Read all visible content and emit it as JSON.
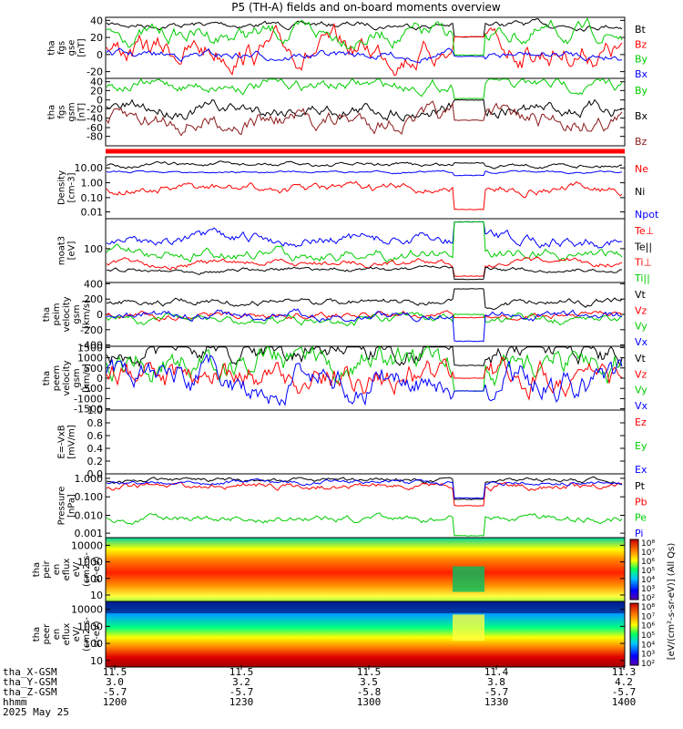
{
  "title": "P5 (TH-A) fields and on-board moments overview",
  "colors": {
    "black": "#000000",
    "red": "#ff0000",
    "green": "#00ff00",
    "blue": "#0000ff",
    "darkred": "#8b1a1a"
  },
  "panels": [
    {
      "id": "fgs_gse",
      "ylabel": [
        "tha",
        "fgs",
        "gse",
        "[nT]"
      ],
      "ticks": [
        "40",
        "20",
        "0",
        "-20"
      ],
      "legend": [
        {
          "label": "Bt",
          "color": "#000000"
        },
        {
          "label": "Bz",
          "color": "#ff0000"
        },
        {
          "label": "By",
          "color": "#00cc00"
        },
        {
          "label": "Bx",
          "color": "#0000ff"
        }
      ]
    },
    {
      "id": "fgs_gsm",
      "ylabel": [
        "tha",
        "fgs",
        "gsm",
        "[nT]"
      ],
      "ticks": [
        "40",
        "20",
        "0",
        "-20",
        "-40",
        "-60",
        "-80"
      ],
      "legend": [
        {
          "label": "By",
          "color": "#00cc00"
        },
        {
          "label": "Bx",
          "color": "#000000"
        },
        {
          "label": "Bz",
          "color": "#8b1a1a"
        }
      ]
    },
    {
      "id": "density",
      "ylabel": [
        "Density",
        "[cm-3]"
      ],
      "ticks": [
        "10.00",
        "1.00",
        "0.10",
        "0.01"
      ],
      "legend": [
        {
          "label": "Ne",
          "color": "#ff0000"
        },
        {
          "label": "Ni",
          "color": "#000000"
        },
        {
          "label": "Npot",
          "color": "#0000ff"
        }
      ]
    },
    {
      "id": "temp",
      "ylabel": [
        "moat3",
        "[eV]"
      ],
      "ticks": [
        "100"
      ],
      "legend": [
        {
          "label": "Te⊥",
          "color": "#ff0000"
        },
        {
          "label": "Te||",
          "color": "#000000"
        },
        {
          "label": "Ti⊥",
          "color": "#ff0000"
        },
        {
          "label": "Ti||",
          "color": "#00cc00"
        }
      ]
    },
    {
      "id": "peim_vel",
      "ylabel": [
        "tha",
        "peim",
        "velocity",
        "gsm",
        "[km/s]"
      ],
      "ticks": [
        "400",
        "200",
        "0",
        "-200",
        "-400"
      ],
      "legend": [
        {
          "label": "Vt",
          "color": "#000000"
        },
        {
          "label": "Vz",
          "color": "#ff0000"
        },
        {
          "label": "Vy",
          "color": "#00cc00"
        },
        {
          "label": "Vx",
          "color": "#0000ff"
        }
      ]
    },
    {
      "id": "peem_vel",
      "ylabel": [
        "tha",
        "peem",
        "velocity",
        "gsm",
        "[km/s]"
      ],
      "ticks": [
        "1500",
        "1000",
        "500",
        "0",
        "-500",
        "-1000",
        "-1500"
      ],
      "legend": [
        {
          "label": "Vt",
          "color": "#000000"
        },
        {
          "label": "Vz",
          "color": "#ff0000"
        },
        {
          "label": "Vy",
          "color": "#00cc00"
        },
        {
          "label": "Vx",
          "color": "#0000ff"
        }
      ]
    },
    {
      "id": "efield",
      "ylabel": [
        "E=-VxB",
        "[mV/m]"
      ],
      "ticks": [
        "1.0",
        "0.8",
        "0.6",
        "0.4",
        "0.2",
        "0.0"
      ],
      "legend": [
        {
          "label": "Ez",
          "color": "#ff0000"
        },
        {
          "label": "Ey",
          "color": "#00cc00"
        },
        {
          "label": "Ex",
          "color": "#0000ff"
        }
      ]
    },
    {
      "id": "pressure",
      "ylabel": [
        "Pressure",
        "[nPa]"
      ],
      "ticks": [
        "1.000",
        "0.100",
        "0.010",
        "0.001"
      ],
      "legend": [
        {
          "label": "Pt",
          "color": "#000000"
        },
        {
          "label": "Pb",
          "color": "#ff0000"
        },
        {
          "label": "Pe",
          "color": "#00cc00"
        },
        {
          "label": "Pi",
          "color": "#0000ff"
        }
      ]
    },
    {
      "id": "peir_spec",
      "ylabel": [
        "tha",
        "peir",
        "en",
        "eflux",
        "eV/",
        "(cm2-s-",
        "sr-eV)"
      ],
      "ticks": [
        "10000",
        "1000",
        "100",
        "10"
      ],
      "legend": []
    },
    {
      "id": "peer_spec",
      "ylabel": [
        "tha",
        "peer",
        "en",
        "eflux",
        "eV/",
        "(cm2-s-",
        "sr-eV)"
      ],
      "ticks": [
        "10000",
        "1000",
        "100",
        "10"
      ],
      "legend": []
    }
  ],
  "colorbar": {
    "label": "[eV/(cm²-s-sr-eV)] (All Qs)",
    "ticks": [
      "10⁸",
      "10⁷",
      "10⁶",
      "10⁵",
      "10⁴",
      "10³",
      "10²"
    ]
  },
  "footer": {
    "row_labels": [
      "tha_X-GSM",
      "tha_Y-GSM",
      "tha_Z-GSM",
      "hhmm",
      "2025 May 25"
    ],
    "columns": [
      {
        "x": "11.5",
        "y": "3.0",
        "z": "-5.7",
        "t": "1200"
      },
      {
        "x": "11.5",
        "y": "3.2",
        "z": "-5.7",
        "t": "1230"
      },
      {
        "x": "11.5",
        "y": "3.5",
        "z": "-5.8",
        "t": "1300"
      },
      {
        "x": "11.4",
        "y": "3.8",
        "z": "-5.7",
        "t": "1330"
      },
      {
        "x": "11.3",
        "y": "4.2",
        "z": "-5.7",
        "t": "1400"
      }
    ]
  },
  "chart_data": {
    "type": "line",
    "title": "P5 (TH-A) fields and on-board moments overview",
    "x": [
      "1200",
      "1230",
      "1300",
      "1330",
      "1400"
    ],
    "xlabel": "hhmm",
    "series": [
      {
        "name": "Bt",
        "values": [
          32,
          30,
          28,
          20,
          30
        ]
      },
      {
        "name": "Bz",
        "values": [
          15,
          -5,
          10,
          10,
          18
        ]
      },
      {
        "name": "By",
        "values": [
          18,
          22,
          20,
          -3,
          14
        ]
      },
      {
        "name": "Bx",
        "values": [
          -5,
          -7,
          -6,
          -2,
          -5
        ]
      }
    ]
  }
}
